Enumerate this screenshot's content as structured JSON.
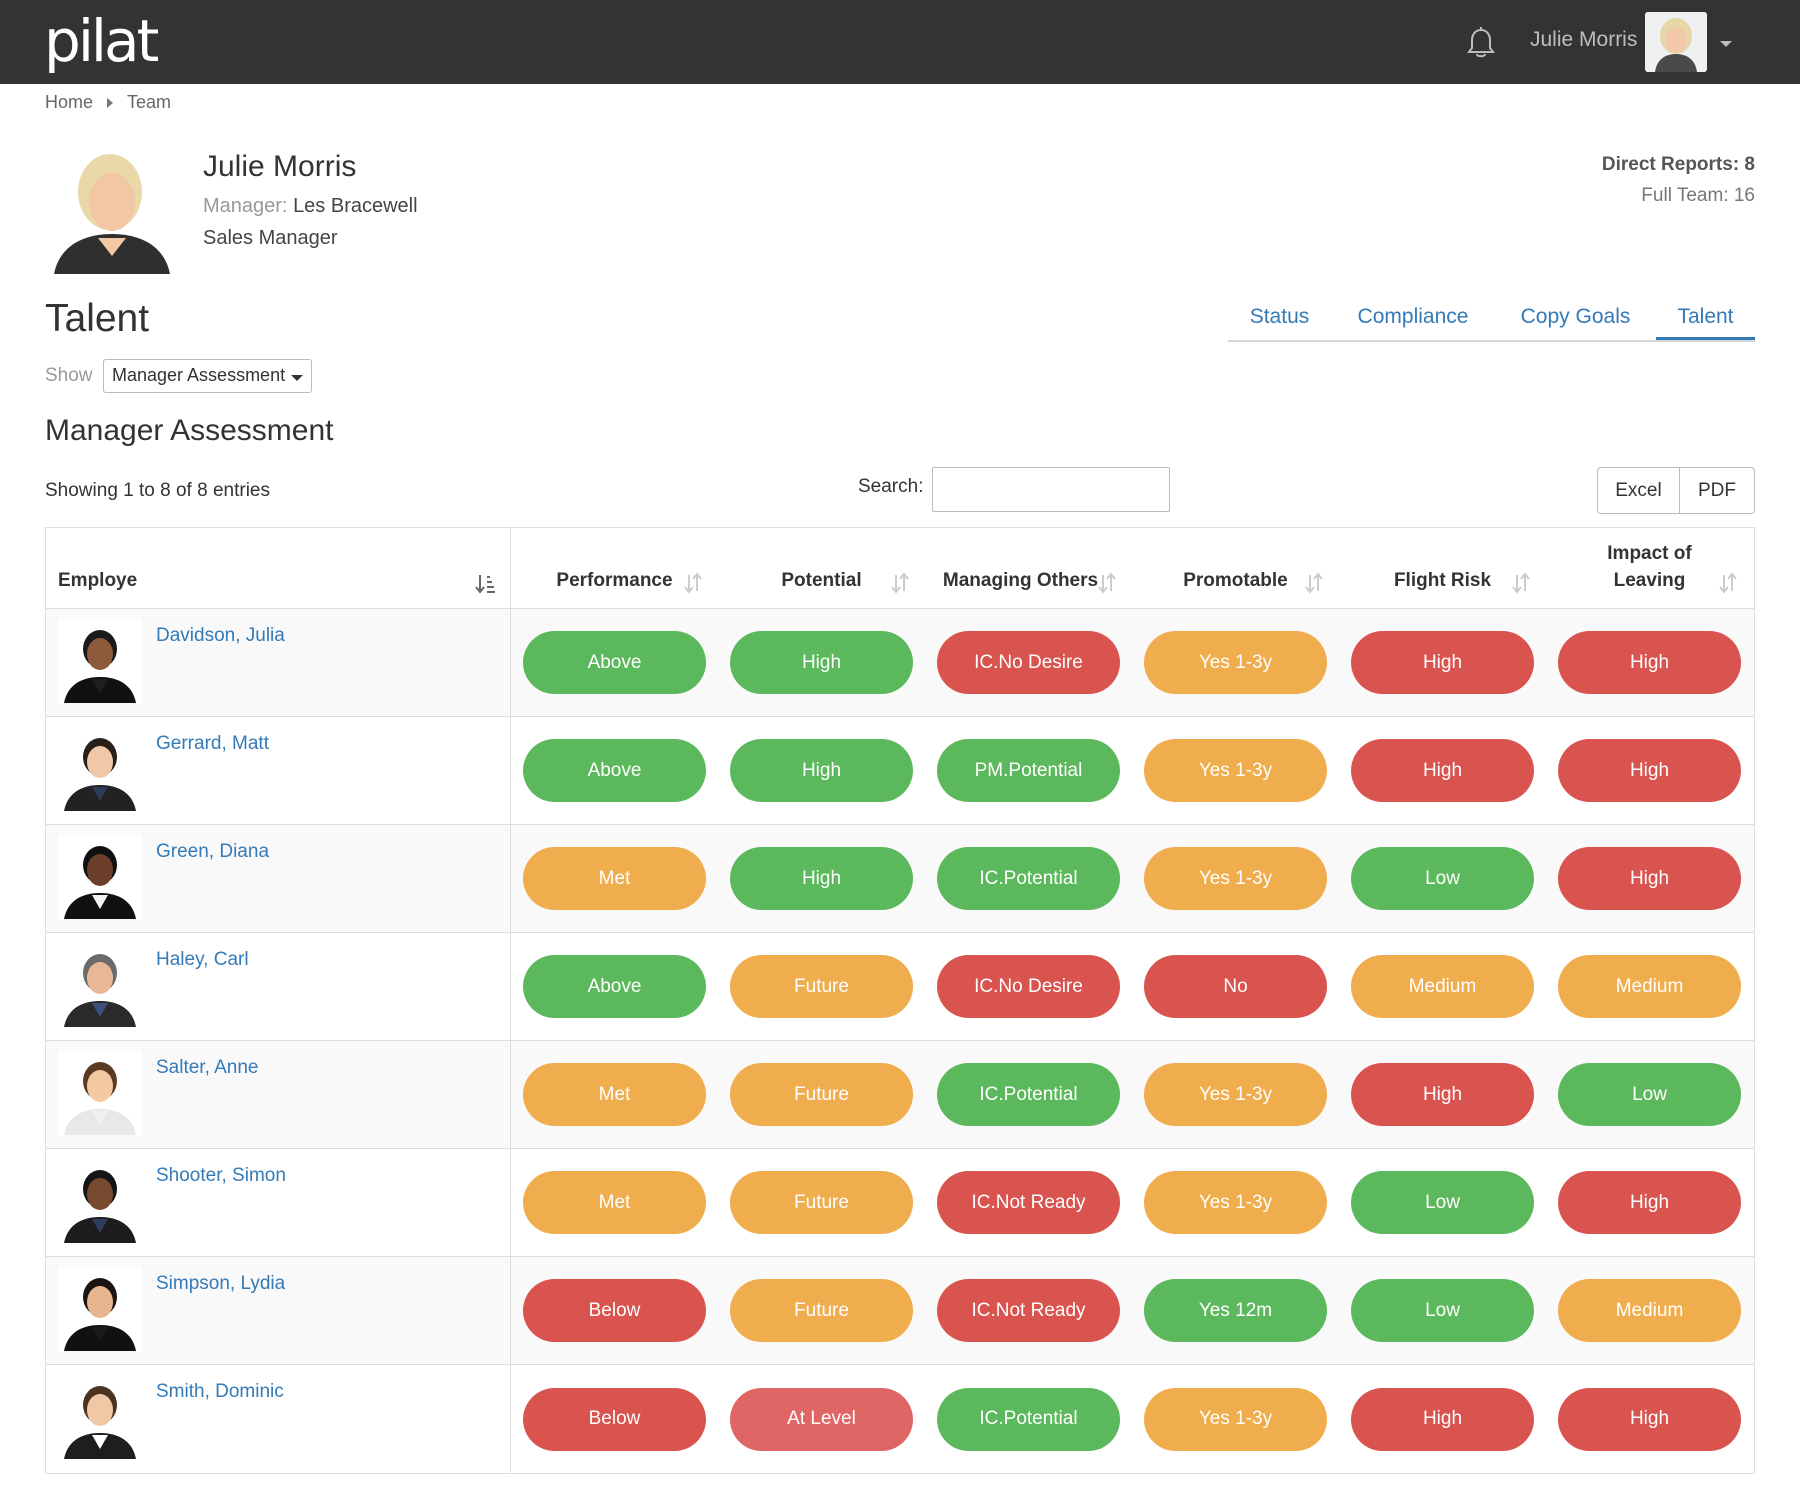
{
  "header": {
    "logo": "pilat",
    "user_name": "Julie Morris"
  },
  "breadcrumb": {
    "home": "Home",
    "team": "Team"
  },
  "profile": {
    "name": "Julie Morris",
    "manager_label": "Manager:",
    "manager_name": "Les Bracewell",
    "role": "Sales Manager",
    "direct_reports": "Direct Reports: 8",
    "full_team": "Full Team: 16"
  },
  "page": {
    "title": "Talent",
    "tabs": [
      "Status",
      "Compliance",
      "Copy Goals",
      "Talent"
    ],
    "active_tab": "Talent",
    "show_label": "Show",
    "show_value": "Manager Assessment",
    "section_title": "Manager Assessment",
    "showing_text": "Showing 1 to 8 of 8 entries",
    "search_label": "Search:",
    "search_value": "",
    "excel_label": "Excel",
    "pdf_label": "PDF"
  },
  "colors": {
    "green": "#5cb85c",
    "orange": "#f0ad4e",
    "red": "#d9534f",
    "light_red": "#e06666",
    "link": "#337ab7",
    "topbar": "#333333"
  },
  "table": {
    "columns": [
      "Employe",
      "Performance",
      "Potential",
      "Managing Others",
      "Promotable",
      "Flight Risk",
      "Impact of Leaving"
    ],
    "rows": [
      {
        "name": "Davidson, Julia",
        "photo": "person-female-1",
        "values": [
          [
            "Above",
            "green"
          ],
          [
            "High",
            "green"
          ],
          [
            "IC.No Desire",
            "red"
          ],
          [
            "Yes 1-3y",
            "orange"
          ],
          [
            "High",
            "red"
          ],
          [
            "High",
            "red"
          ]
        ]
      },
      {
        "name": "Gerrard, Matt",
        "photo": "person-male-1",
        "values": [
          [
            "Above",
            "green"
          ],
          [
            "High",
            "green"
          ],
          [
            "PM.Potential",
            "green"
          ],
          [
            "Yes 1-3y",
            "orange"
          ],
          [
            "High",
            "red"
          ],
          [
            "High",
            "red"
          ]
        ]
      },
      {
        "name": "Green, Diana",
        "photo": "person-female-2",
        "values": [
          [
            "Met",
            "orange"
          ],
          [
            "High",
            "green"
          ],
          [
            "IC.Potential",
            "green"
          ],
          [
            "Yes 1-3y",
            "orange"
          ],
          [
            "Low",
            "green"
          ],
          [
            "High",
            "red"
          ]
        ]
      },
      {
        "name": "Haley, Carl",
        "photo": "person-male-2",
        "values": [
          [
            "Above",
            "green"
          ],
          [
            "Future",
            "orange"
          ],
          [
            "IC.No Desire",
            "red"
          ],
          [
            "No",
            "red"
          ],
          [
            "Medium",
            "orange"
          ],
          [
            "Medium",
            "orange"
          ]
        ]
      },
      {
        "name": "Salter, Anne",
        "photo": "person-female-3",
        "values": [
          [
            "Met",
            "orange"
          ],
          [
            "Future",
            "orange"
          ],
          [
            "IC.Potential",
            "green"
          ],
          [
            "Yes 1-3y",
            "orange"
          ],
          [
            "High",
            "red"
          ],
          [
            "Low",
            "green"
          ]
        ]
      },
      {
        "name": "Shooter, Simon",
        "photo": "person-male-3",
        "values": [
          [
            "Met",
            "orange"
          ],
          [
            "Future",
            "orange"
          ],
          [
            "IC.Not Ready",
            "red"
          ],
          [
            "Yes 1-3y",
            "orange"
          ],
          [
            "Low",
            "green"
          ],
          [
            "High",
            "red"
          ]
        ]
      },
      {
        "name": "Simpson, Lydia",
        "photo": "person-female-4",
        "values": [
          [
            "Below",
            "red"
          ],
          [
            "Future",
            "orange"
          ],
          [
            "IC.Not Ready",
            "red"
          ],
          [
            "Yes 12m",
            "green"
          ],
          [
            "Low",
            "green"
          ],
          [
            "Medium",
            "orange"
          ]
        ]
      },
      {
        "name": "Smith, Dominic",
        "photo": "person-male-4",
        "values": [
          [
            "Below",
            "red"
          ],
          [
            "At Level",
            "light_red"
          ],
          [
            "IC.Potential",
            "green"
          ],
          [
            "Yes 1-3y",
            "orange"
          ],
          [
            "High",
            "red"
          ],
          [
            "High",
            "red"
          ]
        ]
      }
    ]
  }
}
